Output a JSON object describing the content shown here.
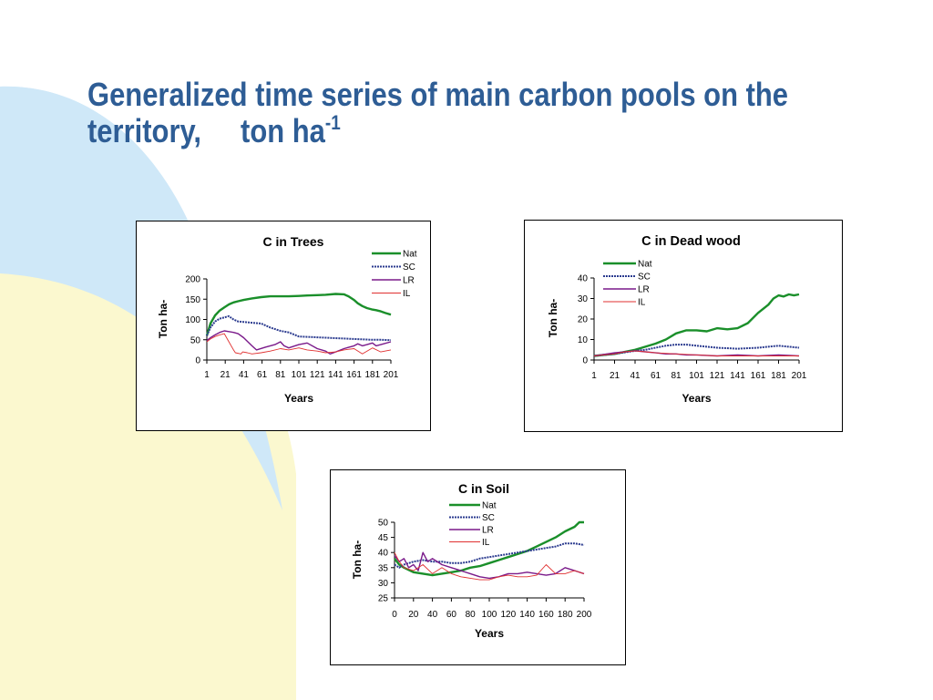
{
  "slide": {
    "title_main": "Generalized time series of main carbon pools on the territory,",
    "title_unit": "ton ha",
    "title_unit_sup": "-1"
  },
  "colors": {
    "title": "#2e5d95",
    "Nat": "#1a8f2a",
    "SC": "#2b3b8f",
    "LR": "#7a1a8a",
    "IL": "#e03030",
    "bg_blue": "#cfe8f8",
    "bg_yellow": "#fbf8cf"
  },
  "chart_data": [
    {
      "type": "line",
      "title": "C in Trees",
      "xlabel": "Years",
      "ylabel": "Ton ha-",
      "xlim": [
        1,
        201
      ],
      "xticks": [
        "1",
        "21",
        "41",
        "61",
        "81",
        "101",
        "121",
        "141",
        "161",
        "181",
        "201"
      ],
      "ylim": [
        0,
        200
      ],
      "yticks": [
        "0",
        "50",
        "100",
        "150",
        "200"
      ],
      "legend_position": "top-right",
      "grid": false,
      "series": [
        {
          "name": "Nat",
          "x": [
            1,
            5,
            10,
            15,
            20,
            25,
            30,
            35,
            41,
            50,
            60,
            70,
            81,
            90,
            101,
            110,
            121,
            130,
            141,
            150,
            155,
            161,
            165,
            170,
            175,
            180,
            185,
            190,
            195,
            201
          ],
          "values": [
            60,
            90,
            110,
            122,
            130,
            137,
            142,
            145,
            148,
            152,
            155,
            157,
            157,
            157,
            158,
            159,
            160,
            161,
            163,
            162,
            157,
            148,
            140,
            133,
            128,
            125,
            123,
            120,
            116,
            112
          ]
        },
        {
          "name": "SC",
          "x": [
            1,
            5,
            10,
            15,
            20,
            25,
            30,
            35,
            41,
            50,
            60,
            70,
            81,
            90,
            101,
            110,
            121,
            130,
            141,
            150,
            160,
            170,
            181,
            190,
            201
          ],
          "values": [
            60,
            80,
            95,
            102,
            105,
            108,
            100,
            95,
            94,
            92,
            90,
            80,
            72,
            68,
            58,
            57,
            56,
            55,
            54,
            53,
            52,
            51,
            50,
            50,
            49
          ]
        },
        {
          "name": "LR",
          "x": [
            1,
            5,
            10,
            15,
            20,
            25,
            30,
            35,
            41,
            50,
            55,
            65,
            75,
            81,
            85,
            90,
            101,
            110,
            121,
            130,
            135,
            141,
            150,
            161,
            165,
            170,
            175,
            181,
            185,
            190,
            201
          ],
          "values": [
            48,
            55,
            62,
            68,
            72,
            70,
            68,
            65,
            55,
            35,
            25,
            32,
            38,
            45,
            35,
            30,
            38,
            42,
            28,
            22,
            15,
            20,
            28,
            35,
            40,
            35,
            38,
            42,
            35,
            38,
            45
          ]
        },
        {
          "name": "IL",
          "x": [
            1,
            5,
            10,
            15,
            20,
            25,
            30,
            32,
            38,
            40,
            45,
            50,
            60,
            70,
            81,
            90,
            101,
            110,
            121,
            130,
            141,
            150,
            161,
            170,
            181,
            190,
            201
          ],
          "values": [
            45,
            52,
            58,
            62,
            65,
            45,
            25,
            18,
            15,
            20,
            18,
            15,
            18,
            22,
            28,
            25,
            30,
            25,
            22,
            18,
            20,
            25,
            28,
            15,
            30,
            20,
            25
          ]
        }
      ]
    },
    {
      "type": "line",
      "title": "C in Dead wood",
      "xlabel": "Years",
      "ylabel": "Ton ha-",
      "xlim": [
        1,
        201
      ],
      "xticks": [
        "1",
        "21",
        "41",
        "61",
        "81",
        "101",
        "121",
        "141",
        "161",
        "181",
        "201"
      ],
      "ylim": [
        0,
        40
      ],
      "yticks": [
        "0",
        "10",
        "20",
        "30",
        "40"
      ],
      "legend_position": "top-left",
      "grid": false,
      "series": [
        {
          "name": "Nat",
          "x": [
            1,
            10,
            21,
            31,
            41,
            51,
            61,
            71,
            81,
            91,
            101,
            111,
            121,
            131,
            141,
            151,
            161,
            171,
            176,
            181,
            186,
            191,
            196,
            201
          ],
          "values": [
            2,
            2.5,
            3,
            4,
            5,
            6.5,
            8,
            10,
            13,
            14.5,
            14.5,
            14,
            15.5,
            15,
            15.5,
            18,
            23,
            27,
            30,
            31.5,
            31,
            32,
            31.5,
            32
          ]
        },
        {
          "name": "SC",
          "x": [
            1,
            21,
            41,
            51,
            61,
            71,
            81,
            91,
            101,
            111,
            121,
            141,
            161,
            171,
            181,
            191,
            201
          ],
          "values": [
            2,
            3,
            4.5,
            5,
            6,
            7,
            7.5,
            7.5,
            7,
            6.5,
            6,
            5.5,
            6,
            6.5,
            7,
            6.5,
            6
          ]
        },
        {
          "name": "LR",
          "x": [
            1,
            21,
            31,
            41,
            51,
            61,
            71,
            81,
            91,
            101,
            121,
            141,
            161,
            181,
            201
          ],
          "values": [
            2,
            3.5,
            4,
            4.5,
            4,
            3.5,
            3,
            3,
            2.5,
            2.5,
            2,
            2.5,
            2,
            2.5,
            2
          ]
        },
        {
          "name": "IL",
          "x": [
            1,
            21,
            31,
            41,
            51,
            61,
            81,
            101,
            121,
            141,
            161,
            181,
            201
          ],
          "values": [
            2,
            3,
            4,
            4.5,
            4,
            3.5,
            3,
            2.5,
            2,
            2,
            2,
            2,
            2
          ]
        }
      ]
    },
    {
      "type": "line",
      "title": "C in Soil",
      "xlabel": "Years",
      "ylabel": "Ton ha-",
      "xlim": [
        0,
        200
      ],
      "xticks": [
        "0",
        "20",
        "40",
        "60",
        "80",
        "100",
        "120",
        "140",
        "160",
        "180",
        "200"
      ],
      "ylim": [
        25,
        50
      ],
      "yticks": [
        "25",
        "30",
        "35",
        "40",
        "45",
        "50"
      ],
      "legend_position": "top-center",
      "grid": false,
      "series": [
        {
          "name": "Nat",
          "x": [
            0,
            5,
            10,
            20,
            30,
            40,
            50,
            60,
            70,
            80,
            90,
            100,
            110,
            120,
            130,
            140,
            150,
            160,
            170,
            180,
            190,
            195,
            200
          ],
          "values": [
            38,
            36,
            35,
            33.5,
            33,
            32.5,
            33,
            33.5,
            34,
            35,
            35.5,
            36.5,
            37.5,
            38.5,
            39.5,
            40.5,
            42,
            43.5,
            45,
            47,
            48.5,
            50,
            50
          ]
        },
        {
          "name": "SC",
          "x": [
            0,
            5,
            10,
            20,
            30,
            40,
            50,
            60,
            70,
            80,
            90,
            100,
            110,
            120,
            130,
            140,
            150,
            160,
            170,
            180,
            190,
            200
          ],
          "values": [
            36,
            35,
            36,
            37,
            37.5,
            37,
            37,
            36.5,
            36.5,
            37,
            38,
            38.5,
            39,
            39.5,
            40,
            40.5,
            41,
            41.5,
            42,
            43,
            43,
            42.5
          ]
        },
        {
          "name": "LR",
          "x": [
            0,
            5,
            10,
            15,
            20,
            25,
            30,
            35,
            40,
            50,
            60,
            70,
            80,
            90,
            100,
            110,
            120,
            130,
            140,
            150,
            160,
            170,
            180,
            190,
            200
          ],
          "values": [
            39,
            37,
            38,
            35,
            36,
            34,
            40,
            37,
            38,
            36,
            35,
            34,
            33,
            32,
            31.5,
            32,
            33,
            33,
            33.5,
            33,
            32.5,
            33,
            35,
            34,
            33
          ]
        },
        {
          "name": "IL",
          "x": [
            0,
            5,
            10,
            20,
            30,
            40,
            50,
            60,
            70,
            80,
            90,
            100,
            110,
            120,
            130,
            140,
            150,
            160,
            170,
            180,
            190,
            200
          ],
          "values": [
            40,
            37,
            35,
            34,
            36,
            33,
            35,
            33,
            32,
            31.5,
            31,
            31,
            32,
            32.5,
            32,
            32,
            32.5,
            36,
            33,
            33,
            34,
            33
          ]
        }
      ]
    }
  ]
}
